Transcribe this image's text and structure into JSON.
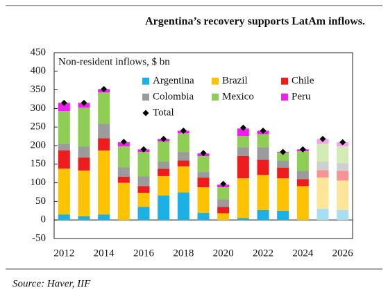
{
  "chart_data": {
    "type": "stacked-bar",
    "title": "Argentina’s recovery supports LatAm inflows.",
    "ylabel": "Non-resident inflows, $ bn",
    "source": "Source: Haver, IIF",
    "categories": [
      "2012",
      null,
      "2014",
      null,
      "2016",
      null,
      "2018",
      null,
      "2020",
      null,
      "2022",
      null,
      "2024",
      null,
      "2026"
    ],
    "ylim": [
      -50,
      450
    ],
    "yticks": [
      -50,
      0,
      50,
      100,
      150,
      200,
      250,
      300,
      350,
      400,
      450
    ],
    "series": [
      {
        "name": "Argentina",
        "color": "#1cb1e4",
        "values": [
          15,
          10,
          15,
          0,
          35,
          66,
          74,
          19,
          0,
          5,
          27,
          25,
          0,
          30,
          27
        ],
        "colors": [
          "#1cb1e4",
          "#1cb1e4",
          "#1cb1e4",
          "#1cb1e4",
          "#1cb1e4",
          "#1cb1e4",
          "#1cb1e4",
          "#1cb1e4",
          "#1cb1e4",
          "#1cb1e4",
          "#1cb1e4",
          "#1cb1e4",
          "#1cb1e4",
          "#a6dff4",
          "#a6dff4"
        ]
      },
      {
        "name": "Brazil",
        "color": "#fdc300",
        "values": [
          123,
          123,
          172,
          100,
          38,
          52,
          70,
          69,
          18,
          107,
          94,
          87,
          91,
          84,
          79
        ],
        "colors": [
          "#fdc300",
          "#fdc300",
          "#fdc300",
          "#fdc300",
          "#fdc300",
          "#fdc300",
          "#fdc300",
          "#fdc300",
          "#fdc300",
          "#fdc300",
          "#fdc300",
          "#fdc300",
          "#fdc300",
          "#fde59a",
          "#fde59a"
        ]
      },
      {
        "name": "Chile",
        "color": "#ee1c1c",
        "values": [
          49,
          35,
          33,
          16,
          18,
          20,
          16,
          26,
          17,
          60,
          41,
          29,
          19,
          20,
          26
        ],
        "colors": [
          "#ee1c1c",
          "#ee1c1c",
          "#ee1c1c",
          "#ee1c1c",
          "#ee1c1c",
          "#ee1c1c",
          "#ee1c1c",
          "#ee1c1c",
          "#ee1c1c",
          "#ee1c1c",
          "#ee1c1c",
          "#ee1c1c",
          "#ee1c1c",
          "#f49494",
          "#f49494"
        ]
      },
      {
        "name": "Colombia",
        "color": "#9b9b9b",
        "values": [
          18,
          30,
          39,
          26,
          26,
          19,
          23,
          15,
          21,
          24,
          34,
          19,
          22,
          23,
          21
        ],
        "colors": [
          "#9b9b9b",
          "#9b9b9b",
          "#9b9b9b",
          "#9b9b9b",
          "#9b9b9b",
          "#9b9b9b",
          "#9b9b9b",
          "#9b9b9b",
          "#9b9b9b",
          "#9b9b9b",
          "#9b9b9b",
          "#9b9b9b",
          "#9b9b9b",
          "#cfcfcf",
          "#cfcfcf"
        ]
      },
      {
        "name": "Mexico",
        "color": "#8fce54",
        "values": [
          88,
          104,
          84,
          56,
          66,
          54,
          50,
          43,
          32,
          30,
          35,
          21,
          53,
          48,
          45
        ],
        "colors": [
          "#8fce54",
          "#8fce54",
          "#8fce54",
          "#8fce54",
          "#8fce54",
          "#8fce54",
          "#8fce54",
          "#8fce54",
          "#8fce54",
          "#8fce54",
          "#8fce54",
          "#8fce54",
          "#8fce54",
          "#d3ecb6",
          "#d3ecb6"
        ]
      },
      {
        "name": "Peru",
        "color": "#f01df0",
        "values": [
          22,
          13,
          9,
          11,
          7,
          7,
          7,
          7,
          7,
          20,
          9,
          2,
          5,
          13,
          11
        ],
        "colors": [
          "#f01df0",
          "#f01df0",
          "#f01df0",
          "#f01df0",
          "#f01df0",
          "#f01df0",
          "#f01df0",
          "#f01df0",
          "#f01df0",
          "#f01df0",
          "#f01df0",
          "#f01df0",
          "#f01df0",
          "#f7a0f0",
          "#f7a0f0"
        ]
      },
      {
        "name": "Total",
        "color": "#000000",
        "marker": "diamond",
        "values": [
          315,
          315,
          352,
          210,
          190,
          218,
          240,
          180,
          97,
          248,
          240,
          183,
          190,
          218,
          209
        ]
      }
    ]
  }
}
